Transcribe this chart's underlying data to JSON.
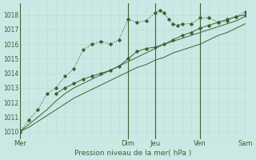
{
  "bg_color": "#cce8e4",
  "grid_color_minor": "#b8ddd8",
  "grid_color_major": "#99ccbb",
  "line_color": "#336633",
  "title": "Pression niveau de la mer( hPa )",
  "ylim": [
    1009.5,
    1018.8
  ],
  "yticks": [
    1010,
    1011,
    1012,
    1013,
    1014,
    1015,
    1016,
    1017,
    1018
  ],
  "xlim": [
    0,
    100
  ],
  "day_lines": [
    0,
    48,
    60,
    80,
    100
  ],
  "day_labels": [
    "Mer",
    "Dim",
    "Jeu",
    "Ven",
    "Sam"
  ],
  "series1_x": [
    0,
    4,
    8,
    12,
    16,
    20,
    24,
    28,
    32,
    36,
    40,
    44,
    48,
    52,
    56,
    60,
    64,
    68,
    72,
    76,
    80,
    84,
    88,
    92,
    96,
    100
  ],
  "series1_y": [
    1010.0,
    1010.3,
    1010.7,
    1011.1,
    1011.5,
    1011.9,
    1012.3,
    1012.6,
    1012.9,
    1013.2,
    1013.5,
    1013.8,
    1014.1,
    1014.4,
    1014.6,
    1014.9,
    1015.1,
    1015.4,
    1015.6,
    1015.8,
    1016.0,
    1016.3,
    1016.6,
    1016.8,
    1017.1,
    1017.4
  ],
  "series2_x": [
    0,
    4,
    8,
    12,
    16,
    20,
    24,
    28,
    32,
    36,
    40,
    44,
    48,
    52,
    56,
    60,
    64,
    68,
    72,
    76,
    80,
    84,
    88,
    92,
    96,
    100
  ],
  "series2_y": [
    1010.0,
    1010.5,
    1011.0,
    1011.5,
    1012.1,
    1012.6,
    1013.0,
    1013.3,
    1013.6,
    1013.9,
    1014.2,
    1014.5,
    1014.8,
    1015.1,
    1015.4,
    1015.7,
    1016.0,
    1016.2,
    1016.4,
    1016.6,
    1016.8,
    1017.0,
    1017.2,
    1017.4,
    1017.6,
    1017.9
  ],
  "series3_x": [
    16,
    20,
    24,
    28,
    32,
    36,
    40,
    44,
    48,
    52,
    56,
    60,
    64,
    68,
    72,
    76,
    80,
    84,
    88,
    92,
    96,
    100
  ],
  "series3_y": [
    1012.6,
    1013.0,
    1013.3,
    1013.6,
    1013.8,
    1014.0,
    1014.2,
    1014.5,
    1015.0,
    1015.5,
    1015.7,
    1015.8,
    1016.0,
    1016.3,
    1016.6,
    1016.8,
    1017.1,
    1017.3,
    1017.5,
    1017.7,
    1017.9,
    1018.0
  ],
  "series4_x": [
    0,
    4,
    8,
    12,
    16,
    20,
    24,
    28,
    32,
    36,
    40,
    44,
    48,
    52,
    56,
    60,
    62,
    64,
    66,
    68,
    70,
    72,
    76,
    80,
    84,
    88,
    92,
    96,
    100
  ],
  "series4_y": [
    1010.0,
    1010.8,
    1011.5,
    1012.6,
    1013.0,
    1013.8,
    1014.3,
    1015.6,
    1016.0,
    1016.2,
    1016.0,
    1016.3,
    1017.7,
    1017.5,
    1017.6,
    1018.15,
    1018.3,
    1018.15,
    1017.7,
    1017.4,
    1017.3,
    1017.4,
    1017.4,
    1017.8,
    1017.8,
    1017.5,
    1017.6,
    1017.9,
    1018.2
  ]
}
